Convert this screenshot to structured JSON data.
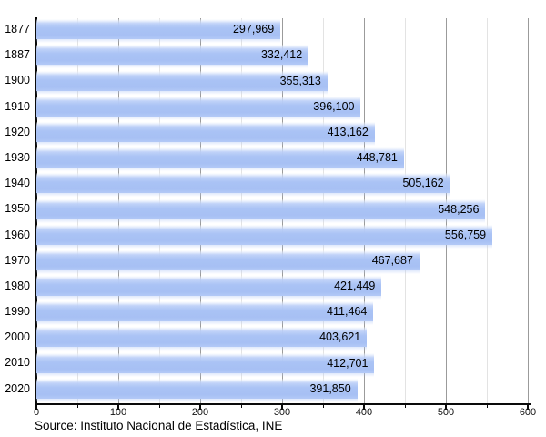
{
  "chart_data": {
    "type": "bar",
    "orientation": "horizontal",
    "title": "",
    "xlabel": "",
    "ylabel": "",
    "grid": true,
    "categories": [
      "1877",
      "1887",
      "1900",
      "1910",
      "1920",
      "1930",
      "1940",
      "1950",
      "1960",
      "1970",
      "1980",
      "1990",
      "2000",
      "2010",
      "2020"
    ],
    "values": [
      297969,
      332412,
      355313,
      396100,
      413162,
      448781,
      505162,
      548256,
      556759,
      467687,
      421449,
      411464,
      403621,
      412701,
      391850
    ],
    "value_labels": [
      "297,969",
      "332,412",
      "355,313",
      "396,100",
      "413,162",
      "448,781",
      "505,162",
      "548,256",
      "556,759",
      "467,687",
      "421,449",
      "411,464",
      "403,621",
      "412,701",
      "391,850"
    ],
    "x_axis": {
      "min": 0,
      "max": 600000,
      "major_step": 100000,
      "minor_step": 50000,
      "ticks": [
        {
          "value": 0,
          "label": "0"
        },
        {
          "value": 50000
        },
        {
          "value": 100000,
          "label": "100"
        },
        {
          "value": 150000
        },
        {
          "value": 200000,
          "label": "200"
        },
        {
          "value": 250000
        },
        {
          "value": 300000,
          "label": "300"
        },
        {
          "value": 350000
        },
        {
          "value": 400000,
          "label": "400"
        },
        {
          "value": 450000
        },
        {
          "value": 500000,
          "label": "500"
        },
        {
          "value": 550000
        },
        {
          "value": 600000,
          "label": "600"
        }
      ]
    },
    "colors": {
      "bar": "#aac3f5",
      "bar_highlight": "#ffffff",
      "grid_major": "#9b9b9b",
      "grid_minor": "#e3e3e3",
      "axis": "#0a0a0a",
      "text": "#000000"
    }
  },
  "footer": {
    "source": "Source: Instituto Nacional de Estadística, INE"
  }
}
